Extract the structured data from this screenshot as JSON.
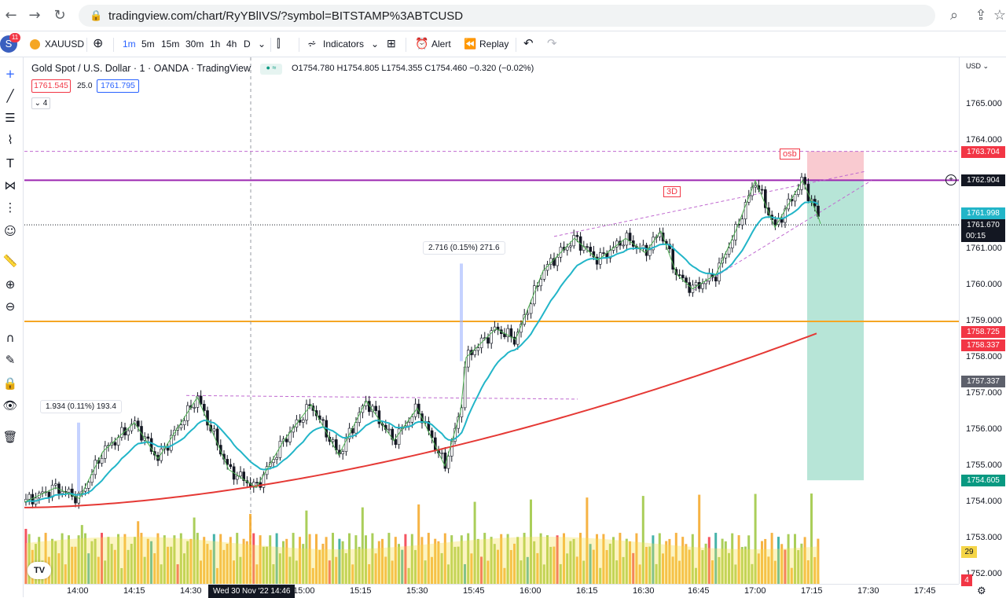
{
  "browser": {
    "back_icon": "arrow-left-icon",
    "url": "tradingview.com/chart/RyYBlIVS/?symbol=BITSTAMP%3ABTCUSD"
  },
  "toolbar": {
    "avatar_badge": "11",
    "avatar_letter": "S",
    "symbol": "XAUUSD",
    "intervals": [
      "1m",
      "5m",
      "15m",
      "30m",
      "1h",
      "4h",
      "D"
    ],
    "indicators_label": "Indicators",
    "alert_label": "Alert",
    "replay_label": "Replay"
  },
  "legend": {
    "title": "Gold Spot / U.S. Dollar · 1 · OANDA · TradingView",
    "ohlc": "O1754.780  H1754.805  L1754.355  C1754.460  −0.320 (−0.02%)",
    "bid": "1761.545",
    "spread": "25.0",
    "ask": "1761.795",
    "indicator_count": "4"
  },
  "annotations": {
    "measure_left": "1.934 (0.11%) 193.4",
    "measure_right": "2.716 (0.15%) 271.6",
    "label_3d": "3D",
    "label_osb": "osb"
  },
  "price_axis": {
    "currency": "USD",
    "ticks": [
      "1765.000",
      "1764.000",
      "1761.000",
      "1760.000",
      "1759.000",
      "1758.000",
      "1757.000",
      "1756.000",
      "1755.000",
      "1754.000",
      "1753.000",
      "1752.000"
    ],
    "tick_values": [
      1765,
      1764,
      1761,
      1760,
      1759,
      1758,
      1757,
      1756,
      1755,
      1754,
      1753,
      1752
    ],
    "badges": [
      {
        "text": "1763.704",
        "value": 1763.704,
        "color": "#f23645"
      },
      {
        "text": "1762.904",
        "value": 1762.904,
        "color": "#131722"
      },
      {
        "text": "1761.998",
        "value": 1761.998,
        "color": "#22b5c8"
      },
      {
        "text": "1761.670",
        "value": 1761.67,
        "color": "#131722"
      },
      {
        "text": "1758.725",
        "value": 1758.725,
        "color": "#f23645"
      },
      {
        "text": "1758.337",
        "value": 1758.337,
        "color": "#f23645"
      },
      {
        "text": "1757.337",
        "value": 1757.337,
        "color": "#5d606b"
      },
      {
        "text": "1754.605",
        "value": 1754.605,
        "color": "#089981"
      }
    ],
    "countdown": "00:15",
    "volume_badge": "29",
    "small_badge": "4"
  },
  "time_axis": {
    "labels": [
      "14:00",
      "14:15",
      "14:30",
      "15:00",
      "15:15",
      "15:30",
      "15:45",
      "16:00",
      "16:15",
      "16:30",
      "16:45",
      "17:00",
      "17:15",
      "17:30",
      "17:45"
    ],
    "crosshair_label": "Wed 30 Nov '22   14:46"
  },
  "colors": {
    "up": "#ffffff",
    "down": "#131722",
    "ema_fast": "#22b5c8",
    "ema_slow": "#e53935",
    "level_purple": "#9c27b0",
    "level_orange": "#f5a623",
    "target_fill": "#9fdcca",
    "stop_fill": "#f8c1c8"
  }
}
